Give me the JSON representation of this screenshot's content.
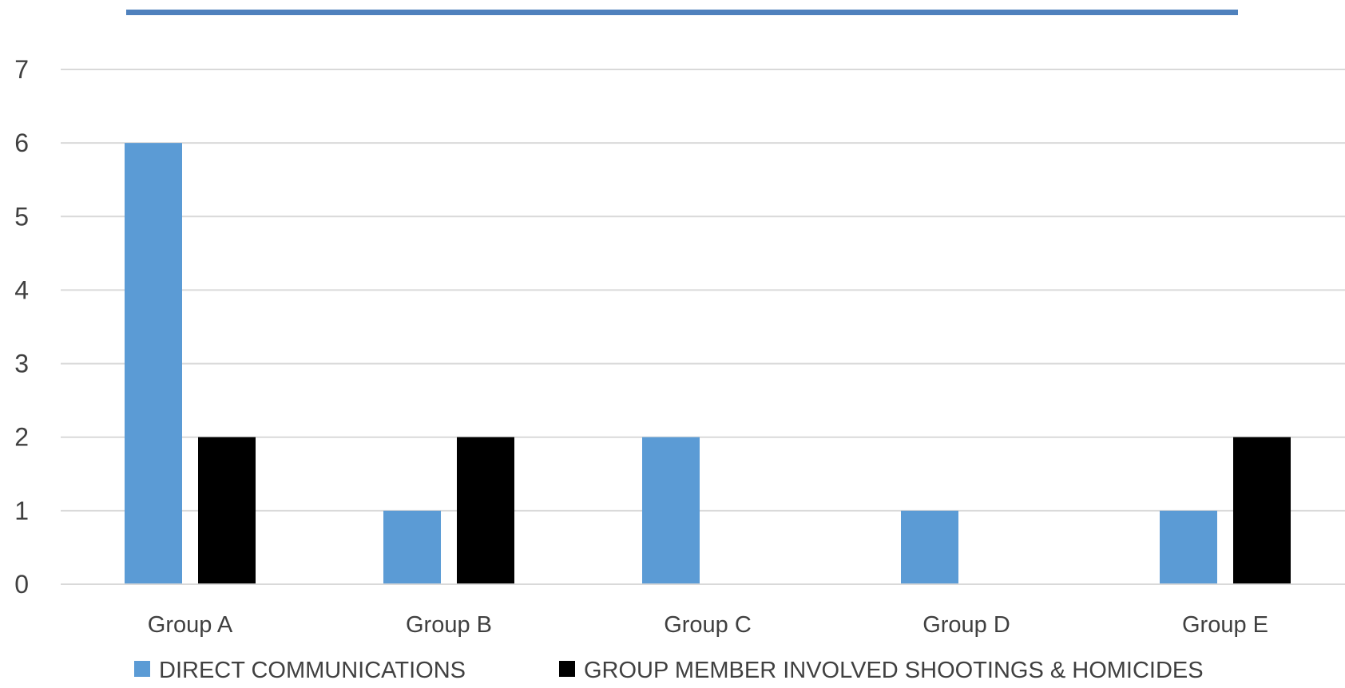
{
  "chart_data": {
    "type": "bar",
    "title": "",
    "xlabel": "",
    "ylabel": "",
    "categories": [
      "Group A",
      "Group B",
      "Group C",
      "Group D",
      "Group E"
    ],
    "series": [
      {
        "name": "DIRECT COMMUNICATIONS",
        "color": "#5b9bd5",
        "values": [
          6,
          1,
          2,
          1,
          1
        ]
      },
      {
        "name": "GROUP MEMBER INVOLVED SHOOTINGS & HOMICIDES",
        "color": "#000000",
        "values": [
          2,
          2,
          0,
          0,
          2
        ]
      }
    ],
    "ylim": [
      0,
      7
    ],
    "yticks": [
      0,
      1,
      2,
      3,
      4,
      5,
      6,
      7
    ],
    "grid": true,
    "legend_position": "bottom",
    "title_bar_color": "#4f81bd",
    "gridline_color": "#d9d9d9"
  }
}
